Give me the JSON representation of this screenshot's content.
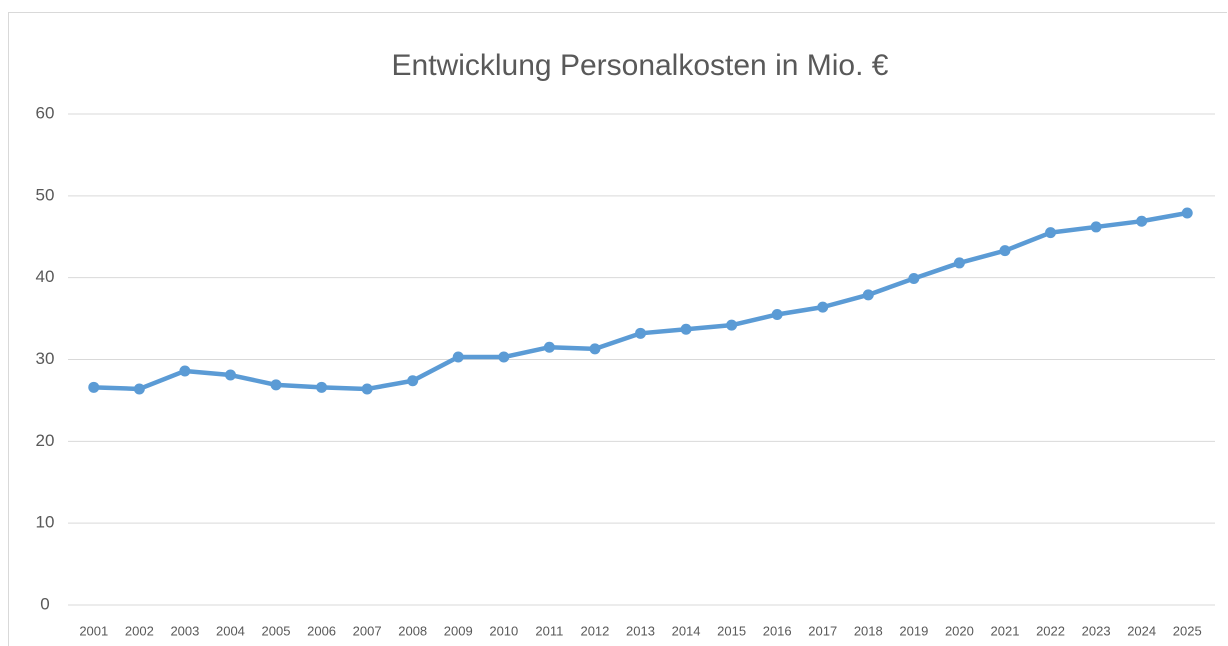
{
  "chart_data": {
    "type": "line",
    "title": "Entwicklung Personalkosten in Mio. €",
    "categories": [
      "2001",
      "2002",
      "2003",
      "2004",
      "2005",
      "2006",
      "2007",
      "2008",
      "2009",
      "2010",
      "2011",
      "2012",
      "2013",
      "2014",
      "2015",
      "2016",
      "2017",
      "2018",
      "2019",
      "2020",
      "2021",
      "2022",
      "2023",
      "2024",
      "2025"
    ],
    "series": [
      {
        "color": "#5b9bd5",
        "values": [
          26.6,
          26.4,
          28.6,
          28.1,
          26.9,
          26.6,
          26.4,
          27.4,
          30.3,
          30.3,
          31.5,
          31.3,
          33.2,
          33.7,
          34.2,
          35.5,
          36.4,
          37.9,
          39.9,
          41.8,
          43.3,
          45.5,
          46.2,
          46.9,
          47.9
        ]
      }
    ],
    "ylim": [
      0,
      60
    ],
    "yticks": [
      0,
      10,
      20,
      30,
      40,
      50,
      60
    ],
    "grid": true
  }
}
